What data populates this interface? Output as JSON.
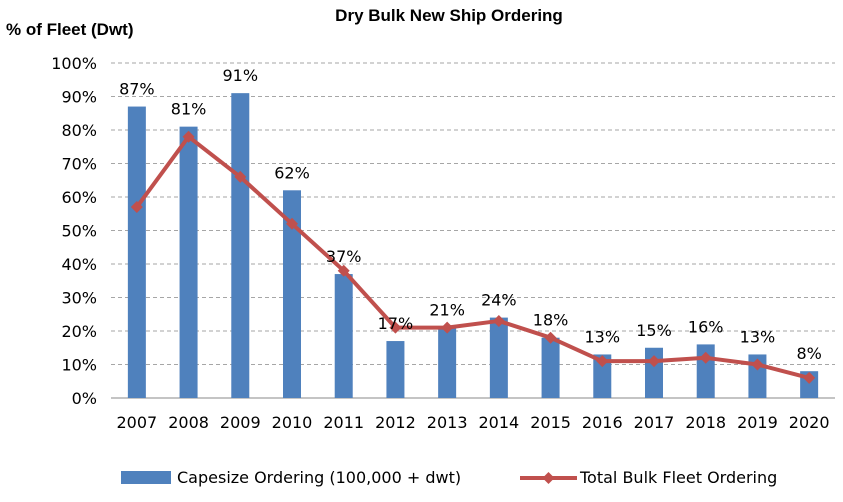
{
  "chart_data": {
    "type": "bar",
    "title": "Dry Bulk New Ship Ordering",
    "ylabel": "% of Fleet (Dwt)",
    "xlabel": "",
    "categories": [
      "2007",
      "2008",
      "2009",
      "2010",
      "2011",
      "2012",
      "2013",
      "2014",
      "2015",
      "2016",
      "2017",
      "2018",
      "2019",
      "2020"
    ],
    "ylim": [
      0,
      100
    ],
    "yticks": [
      "0%",
      "10%",
      "20%",
      "30%",
      "40%",
      "50%",
      "60%",
      "70%",
      "80%",
      "90%",
      "100%"
    ],
    "grid": true,
    "legend_position": "bottom",
    "series": [
      {
        "name": "Capesize Ordering (100,000 + dwt)",
        "type": "bar",
        "color": "#4f81bd",
        "values": [
          87,
          81,
          91,
          62,
          37,
          17,
          21,
          24,
          18,
          13,
          15,
          16,
          13,
          8
        ],
        "data_labels": [
          "87%",
          "81%",
          "91%",
          "62%",
          "37%",
          "17%",
          "21%",
          "24%",
          "18%",
          "13%",
          "15%",
          "16%",
          "13%",
          "8%"
        ]
      },
      {
        "name": "Total Bulk Fleet Ordering",
        "type": "line",
        "color": "#c0504d",
        "values": [
          57,
          78,
          66,
          52,
          38,
          21,
          21,
          23,
          18,
          11,
          11,
          12,
          10,
          6
        ]
      }
    ]
  }
}
